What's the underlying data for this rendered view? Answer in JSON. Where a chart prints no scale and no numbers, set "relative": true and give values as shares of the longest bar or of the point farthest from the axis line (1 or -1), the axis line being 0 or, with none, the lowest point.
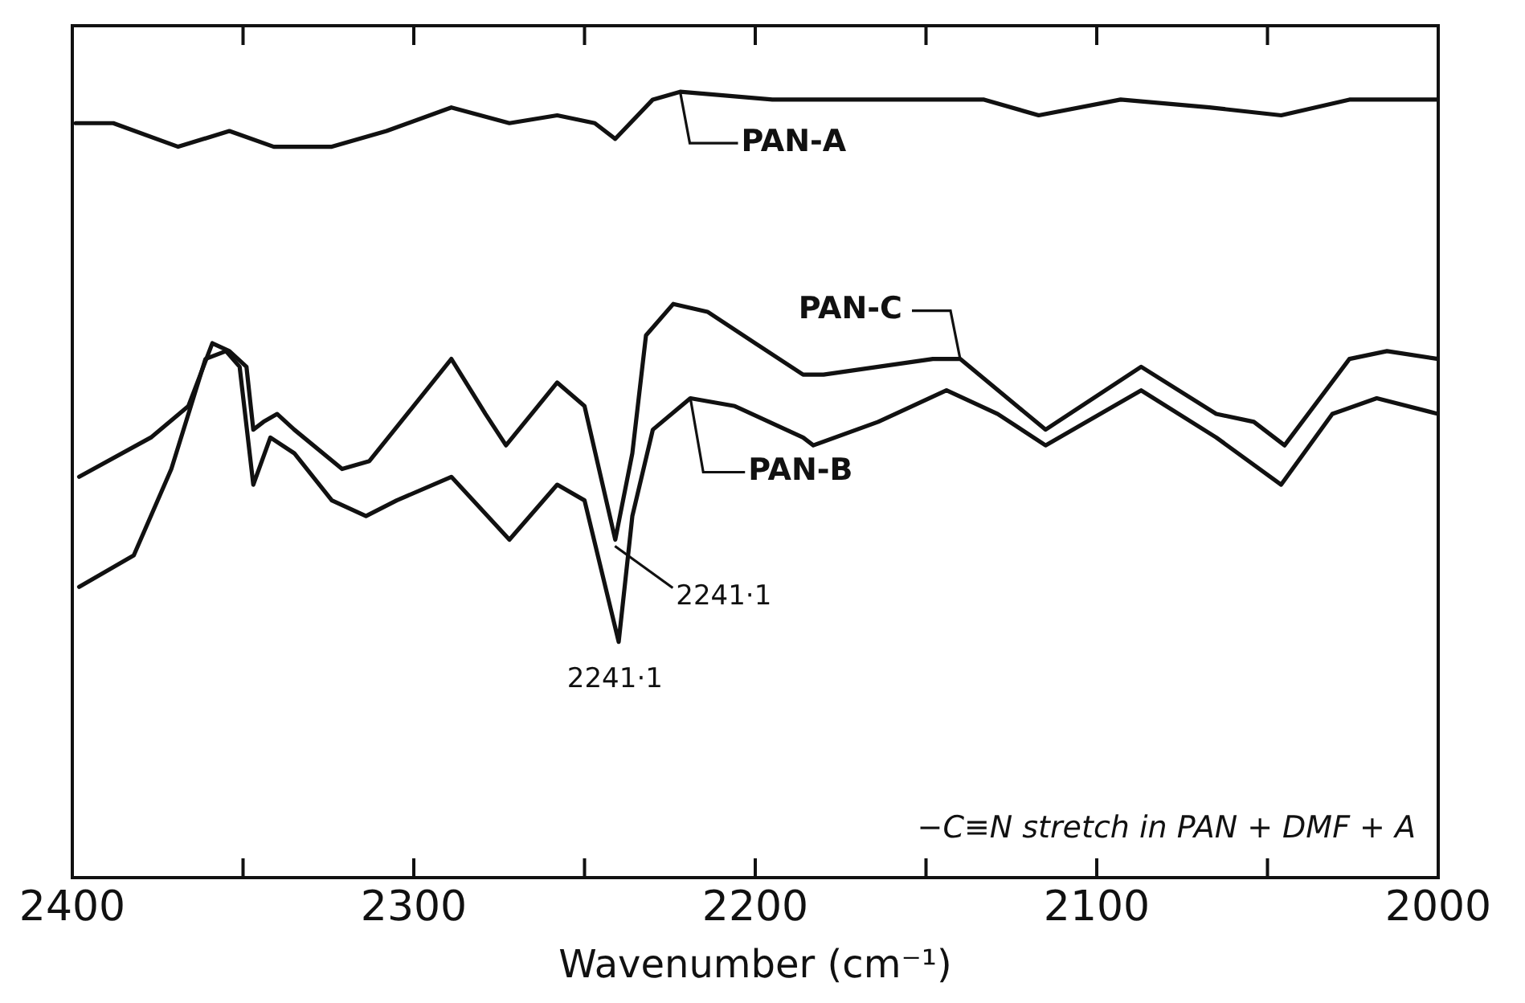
{
  "chart_data": {
    "type": "line",
    "xlabel": "Wavenumber (cm⁻¹)",
    "relative": true,
    "xlim": [
      2400,
      2000
    ],
    "xticks": [
      2400,
      {
        "value": 2350,
        "label": null
      },
      2300,
      {
        "value": 2250,
        "label": null
      },
      2200,
      {
        "value": 2150,
        "label": null
      },
      2100,
      {
        "value": 2050,
        "label": null
      },
      2000
    ],
    "tick_labels": "x",
    "grid": false,
    "legend": false,
    "marker": "none",
    "line_style": "solid",
    "series": [
      {
        "name": "PAN-A",
        "color": "#111111",
        "x": [
          2399,
          2388,
          2369,
          2354,
          2341,
          2324,
          2308,
          2289,
          2272,
          2258,
          2247,
          2241,
          2230,
          2222,
          2195,
          2152,
          2133,
          2117,
          2093,
          2067,
          2046,
          2026,
          2000
        ],
        "values": [
          0.96,
          0.96,
          0.93,
          0.95,
          0.93,
          0.93,
          0.95,
          0.98,
          0.96,
          0.97,
          0.96,
          0.94,
          0.99,
          1,
          0.99,
          0.99,
          0.99,
          0.97,
          0.99,
          0.98,
          0.97,
          0.99,
          0.99
        ]
      },
      {
        "name": "PAN-C",
        "color": "#111111",
        "x": [
          2398,
          2377,
          2366,
          2359,
          2354,
          2349,
          2347,
          2344,
          2340,
          2335,
          2321,
          2313,
          2289,
          2279,
          2273,
          2258,
          2250,
          2241,
          2236,
          2232,
          2224,
          2214,
          2200,
          2186,
          2180,
          2164,
          2148,
          2140,
          2115,
          2087,
          2065,
          2054,
          2045,
          2026,
          2015,
          2000
        ],
        "values": [
          0.51,
          0.56,
          0.6,
          0.68,
          0.67,
          0.65,
          0.57,
          0.58,
          0.59,
          0.57,
          0.52,
          0.53,
          0.66,
          0.59,
          0.55,
          0.63,
          0.6,
          0.43,
          0.54,
          0.69,
          0.73,
          0.72,
          0.68,
          0.64,
          0.64,
          0.65,
          0.66,
          0.66,
          0.57,
          0.65,
          0.59,
          0.58,
          0.55,
          0.66,
          0.67,
          0.66
        ]
      },
      {
        "name": "PAN-B",
        "color": "#111111",
        "x": [
          2398,
          2382,
          2371,
          2361,
          2355,
          2351,
          2347,
          2342,
          2335,
          2324,
          2314,
          2305,
          2289,
          2272,
          2258,
          2250,
          2240,
          2236,
          2230,
          2219,
          2206,
          2186,
          2183,
          2164,
          2144,
          2129,
          2115,
          2087,
          2065,
          2046,
          2031,
          2018,
          2000
        ],
        "values": [
          0.37,
          0.41,
          0.52,
          0.66,
          0.67,
          0.65,
          0.5,
          0.56,
          0.54,
          0.48,
          0.46,
          0.48,
          0.51,
          0.43,
          0.5,
          0.48,
          0.3,
          0.46,
          0.57,
          0.61,
          0.6,
          0.56,
          0.55,
          0.58,
          0.62,
          0.59,
          0.55,
          0.62,
          0.56,
          0.5,
          0.59,
          0.61,
          0.59
        ]
      }
    ],
    "annotations": [
      {
        "text": "2241·1",
        "x": 2241.1,
        "y": 0.43
      },
      {
        "text": "2241·1",
        "x": 2241.1,
        "y": 0.3
      },
      "−C≡N stretch in PAN + DMF + A"
    ]
  }
}
